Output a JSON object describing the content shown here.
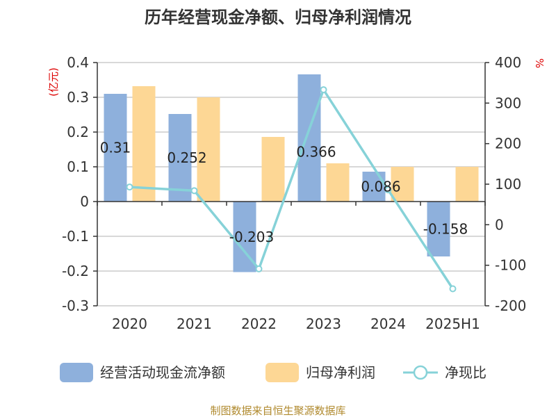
{
  "chart_data": {
    "type": "bar+line",
    "title": "历年经营现金净额、归母净利润情况",
    "categories": [
      "2020",
      "2021",
      "2022",
      "2023",
      "2024",
      "2025H1"
    ],
    "series": [
      {
        "name": "经营活动现金流净额",
        "type": "bar",
        "axis": "left",
        "color": "#8eb0dc",
        "values": [
          0.31,
          0.252,
          -0.203,
          0.366,
          0.086,
          -0.158
        ],
        "labels": [
          "0.31",
          "0.252",
          "-0.203",
          "0.366",
          "0.086",
          "-0.158"
        ]
      },
      {
        "name": "归母净利润",
        "type": "bar",
        "axis": "left",
        "color": "#fdd795",
        "values": [
          0.332,
          0.3,
          0.186,
          0.11,
          0.1,
          0.1
        ]
      },
      {
        "name": "净现比",
        "type": "line",
        "axis": "right",
        "color": "#86d2d8",
        "values": [
          93,
          84,
          -109,
          333,
          86,
          -158
        ]
      }
    ],
    "y_left": {
      "unit": "(亿元)",
      "min": -0.3,
      "max": 0.4,
      "ticks": [
        0.4,
        0.3,
        0.2,
        0.1,
        0,
        -0.1,
        -0.2,
        -0.3
      ],
      "tick_labels": [
        "0.4",
        "0.3",
        "0.2",
        "0.1",
        "0",
        "-0.1",
        "-0.2",
        "-0.3"
      ]
    },
    "y_right": {
      "unit": "%",
      "min": -200,
      "max": 400,
      "ticks": [
        400,
        300,
        200,
        100,
        0,
        -100,
        -200
      ],
      "tick_labels": [
        "400",
        "300",
        "200",
        "100",
        "0",
        "-100",
        "-200"
      ]
    },
    "grid": true,
    "legend_position": "bottom"
  },
  "source": "制图数据来自恒生聚源数据库"
}
